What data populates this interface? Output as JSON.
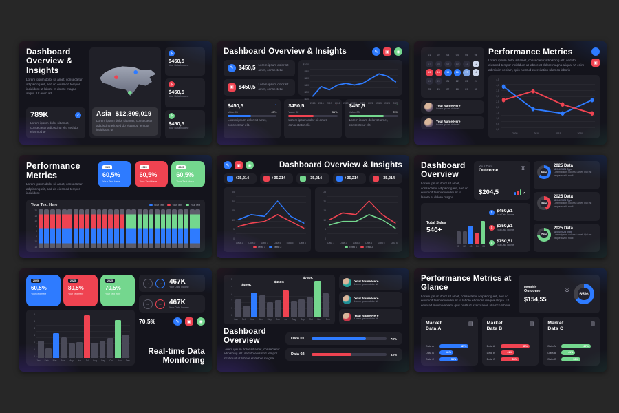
{
  "colors": {
    "blue": "#2e7bff",
    "red": "#ef4351",
    "green": "#74d78e",
    "gray": "#4a4a58"
  },
  "slides": {
    "s1": {
      "title": "Dashboard Overview & Insights",
      "body": "Lorem ipsum dolor sit amet, consectetur adipiscing elit, sed do eiusmod tempor incididunt ut labore et dolore magna aliqua. Ut enim ad",
      "stat_value": "789K",
      "stat_body": "Lorem ipsum dolor sit amet, consectetur adipiscing elit, sed do eiusmod te",
      "region": "Asia",
      "region_value": "$12,809,019",
      "region_body": "Lorem ipsum dolor sit amet, consectetur adipiscing elit sed do eiusmod tempor incididunt ut",
      "incomes": [
        {
          "value": "$450,5",
          "label": "Your Data Income",
          "color": "#2e7bff"
        },
        {
          "value": "$450,5",
          "label": "Your Data Income",
          "color": "#ef4351"
        },
        {
          "value": "$450,5",
          "label": "Your Data Income",
          "color": "#74d78e"
        }
      ]
    },
    "s2": {
      "title": "Dashboard Overview & Insights",
      "cards": [
        {
          "value": "$450,5",
          "body": "Lorem ipsum dolor sit amet, consectetur",
          "color": "#2e7bff"
        },
        {
          "value": "$450,5",
          "body": "Lorem ipsum dolor sit amet, consectetur",
          "color": "#ef4351"
        }
      ],
      "chart": {
        "y": [
          "$10,0",
          "$8,0",
          "$6,0",
          "$4,0",
          "$2,0",
          "$0,0"
        ],
        "x": [
          "2015",
          "2016",
          "2017",
          "2018",
          "2019",
          "2020",
          "2021",
          "2022",
          "2023",
          "2024",
          "2025"
        ],
        "max": 10,
        "sw": 1.4,
        "series": [
          {
            "color": "#2e7bff",
            "values": [
              0.5,
              3.5,
              2.5,
              4,
              4.5,
              4,
              4.5,
              6,
              7.5,
              6.8,
              5
            ]
          }
        ]
      },
      "value_cards": [
        {
          "value": "$450,5",
          "label": "Value 01",
          "pct": 47,
          "pct_label": "47%",
          "color": "#2e7bff",
          "body": "Lorem ipsum dolor sit amet, consectetur elit."
        },
        {
          "value": "$450,5",
          "label": "Value 02",
          "pct": 51,
          "pct_label": "51%",
          "color": "#ef4351",
          "body": "Lorem ipsum dolor sit amet, consectetur elit."
        },
        {
          "value": "$450,5",
          "label": "Value 03",
          "pct": 70,
          "pct_label": "70%",
          "color": "#74d78e",
          "body": "Lorem ipsum dolor sit amet, consectetur elit."
        }
      ]
    },
    "s3": {
      "title": "Performance Metrics",
      "body": "Lorem ipsum dolor sit amet, consectetur adipiscing elit, sed do eiusmod tempor incididunt ut labore et dolore magna aliqua. Ut enim ad minim veniam, quis nostrud exercitation ullamco laboris",
      "calendar": {
        "days": [
          "01",
          "02",
          "03",
          "04",
          "05",
          "06",
          "07",
          "08",
          "09",
          "10",
          "11",
          "12",
          "13",
          "14",
          "15",
          "16",
          "17",
          "18",
          "19",
          "20",
          "21",
          "22",
          "23",
          "24",
          "25",
          "26",
          "27",
          "28",
          "29",
          "30"
        ],
        "states": [
          "plain",
          "plain",
          "plain",
          "plain",
          "plain",
          "plain",
          "dim",
          "dim",
          "dim",
          "dim",
          "dim",
          "light",
          "red",
          "red",
          "blue",
          "blue",
          "lightblue",
          "light",
          "dim",
          "dim",
          "plain",
          "plain",
          "plain",
          "plain",
          "plain",
          "plain",
          "plain",
          "plain",
          "plain",
          "plain"
        ]
      },
      "profiles": [
        {
          "name": "Your Name Here",
          "sub": "Lorem ipsum dolor sit"
        },
        {
          "name": "Your Name Here",
          "sub": "Lorem ipsum dolor sit"
        }
      ],
      "chart": {
        "x": [
          "2005",
          "2010",
          "2015",
          "2020"
        ],
        "y": [
          "4,5",
          "4,0",
          "3,5",
          "3,0",
          "2,5",
          "2,0",
          "1,5",
          "1,0",
          "0,5",
          "0,0"
        ],
        "max": 5,
        "sw": 1.1,
        "dots": true,
        "series": [
          {
            "color": "#2e7bff",
            "values": [
              4.5,
              2,
              1.5,
              3
            ]
          },
          {
            "color": "#ef4351",
            "values": [
              3,
              4,
              2.5,
              1.5
            ]
          }
        ]
      }
    },
    "s4": {
      "title": "Performance Metrics",
      "body": "Lorem ipsum dolor sit amet, consectetur adipiscing elit, sed do eiusmod tempor incididunt",
      "kpis": [
        {
          "badge": "2025",
          "value": "60,5%",
          "label": "Your Text Here",
          "color": "#2e7bff"
        },
        {
          "badge": "2025",
          "value": "60,5%",
          "label": "Your Text Here",
          "color": "#ef4351"
        },
        {
          "badge": "2025",
          "value": "60,5%",
          "label": "Your Text Here",
          "color": "#74d78e"
        }
      ],
      "chart": {
        "title": "Your Text Here",
        "legend": [
          {
            "label": "Your Text",
            "color": "#2e7bff"
          },
          {
            "label": "Your Text",
            "color": "#ef4351"
          },
          {
            "label": "Your Text",
            "color": "#74d78e"
          }
        ],
        "y": [
          "20",
          "15",
          "10",
          "5",
          "0",
          "5",
          "10",
          "15"
        ],
        "stack": {
          "count": 28,
          "red_until": 15,
          "top": "#5c5c6a",
          "mid_red": "#ef4351",
          "mid_green": "#74d78e",
          "low": "#2e7bff"
        }
      }
    },
    "s5": {
      "title": "Dashboard Overview & Insights",
      "badges": [
        {
          "value": "+35,214",
          "color": "#2e7bff"
        },
        {
          "value": "+35,214",
          "color": "#ef4351"
        },
        {
          "value": "+35,214",
          "color": "#74d78e"
        },
        {
          "value": "+35,214",
          "color": "#2e7bff"
        },
        {
          "value": "+35,214",
          "color": "#ef4351"
        }
      ],
      "charts": [
        {
          "x": [
            "Data 1",
            "Data 2",
            "Data 3",
            "Data 4",
            "Data 5",
            "Data 6"
          ],
          "y": [
            "25",
            "20",
            "15",
            "10",
            "5",
            "0"
          ],
          "max": 25,
          "sw": 1,
          "series": [
            {
              "name": "Texto 1",
              "color": "#ef4351",
              "values": [
                6,
                8,
                9,
                13,
                9,
                5
              ]
            },
            {
              "name": "Texto 2",
              "color": "#2e7bff",
              "values": [
                10,
                13,
                12,
                21,
                12,
                8
              ]
            }
          ]
        },
        {
          "x": [
            "Data 1",
            "Data 2",
            "Data 3",
            "Data 4",
            "Data 5",
            "Data 6"
          ],
          "y": [
            "25",
            "20",
            "15",
            "10",
            "5",
            "0"
          ],
          "max": 25,
          "sw": 1,
          "series": [
            {
              "name": "Texto 1",
              "color": "#74d78e",
              "values": [
                7,
                9,
                9,
                13,
                10,
                5
              ]
            },
            {
              "name": "Texto 2",
              "color": "#ef4351",
              "values": [
                10,
                14,
                13,
                21,
                13,
                8
              ]
            }
          ]
        }
      ]
    },
    "s6": {
      "title": "Dashboard Overview",
      "body": "Lorem ipsum dolor sit amet, consectetur adipiscing elit, sed do eiusmod tempor incididunt ut labore et dolore magna",
      "outcome": {
        "label1": "Your Data",
        "label2": "Outcome",
        "value": "$204,5"
      },
      "sales": {
        "label": "Total Sales",
        "value": "540+",
        "x": [
          "01",
          "02",
          "03",
          "04",
          "05"
        ],
        "bars": {
          "values": [
            42,
            42,
            62,
            38,
            78
          ],
          "colors": [
            "#4a4a58",
            "#4a4a58",
            "#2e7bff",
            "#ef4351",
            "#74d78e"
          ]
        },
        "incomes": [
          {
            "value": "$450,51",
            "label": "Your Data Income",
            "color": "#2e7bff"
          },
          {
            "value": "$350,51",
            "label": "Your Data Income",
            "color": "#ef4351"
          },
          {
            "value": "$750,51",
            "label": "Your Data Income",
            "color": "#74d78e"
          }
        ]
      },
      "cards": [
        {
          "pct": 65,
          "pct_label": "65%",
          "color": "#2e7bff",
          "title": "2025 Data",
          "sub": "11/04/2025 Type",
          "body": "Lorem ipsum dolor sit amet. Qui est neque a velit modi"
        },
        {
          "pct": 45,
          "pct_label": "45%",
          "color": "#ef4351",
          "title": "2025 Data",
          "sub": "11/04/2025 Type",
          "body": "Lorem ipsum dolor sit amet. Qui est neque a velit modi"
        },
        {
          "pct": 75,
          "pct_label": "75%",
          "color": "#74d78e",
          "title": "2025 Data",
          "sub": "11/04/2025 Type",
          "body": "Lorem ipsum dolor sit amet. Qui est neque a velit modi"
        }
      ]
    },
    "s7": {
      "kpis": [
        {
          "badge": "2025",
          "value": "60,5%",
          "label": "Your Text Here",
          "color": "#2e7bff"
        },
        {
          "badge": "2025",
          "value": "80,5%",
          "label": "Your Text Here",
          "color": "#ef4351"
        },
        {
          "badge": "2025",
          "value": "70,5%",
          "label": "Your Text Here",
          "color": "#74d78e"
        }
      ],
      "chart": {
        "x": [
          "Jan",
          "Feb",
          "Mar",
          "Apr",
          "May",
          "Jun",
          "Jul",
          "Aug",
          "Sep",
          "Oct",
          "Nov",
          "Dec"
        ],
        "y": [
          "6",
          "5",
          "4",
          "3",
          "2",
          "1",
          "0"
        ],
        "bars": {
          "values": [
            38,
            22,
            55,
            46,
            32,
            36,
            95,
            34,
            38,
            44,
            85,
            52
          ],
          "colors": [
            "#4a4a58",
            "#4a4a58",
            "#2e7bff",
            "#4a4a58",
            "#4a4a58",
            "#4a4a58",
            "#ef4351",
            "#4a4a58",
            "#4a4a58",
            "#4a4a58",
            "#74d78e",
            "#4a4a58"
          ]
        }
      },
      "incomes": [
        {
          "value": "467K",
          "label": "Your Data Income",
          "color": "#2e7bff"
        },
        {
          "value": "467K",
          "label": "Your Data Income",
          "color": "#ef4351"
        }
      ],
      "pct": "70,5%",
      "title": "Real-time Data Monitoring"
    },
    "s8": {
      "chart": {
        "x": [
          "Jan",
          "Feb",
          "Mar",
          "Apr",
          "May",
          "Jun",
          "Jul",
          "Aug",
          "Sep",
          "Oct",
          "Nov",
          "Dec"
        ],
        "y": [
          "5",
          "4",
          "3",
          "2",
          "1",
          "0"
        ],
        "bars": {
          "values": [
            45,
            28,
            62,
            55,
            38,
            42,
            68,
            40,
            45,
            50,
            92,
            60
          ],
          "colors": [
            "#4a4a58",
            "#4a4a58",
            "#2e7bff",
            "#4a4a58",
            "#4a4a58",
            "#4a4a58",
            "#ef4351",
            "#4a4a58",
            "#4a4a58",
            "#4a4a58",
            "#74d78e",
            "#4a4a58"
          ]
        },
        "labels": [
          {
            "text": "$400K"
          },
          {
            "text": "$450K"
          },
          {
            "text": "$750K"
          }
        ]
      },
      "profiles": [
        {
          "name": "Your Name Here",
          "sub": "Lorem ipsum dolor sit"
        },
        {
          "name": "Your Name Here",
          "sub": "Lorem ipsum dolor sit"
        },
        {
          "name": "Your Name Here",
          "sub": "Lorem ipsum dolor sit"
        }
      ],
      "title": "Dashboard Overview",
      "body": "Lorem ipsum dolor sit amet, consectetur adipiscing elit, sed do eiusmod tempor incididunt ut labore et dolore magna",
      "progress": [
        {
          "label": "Data 01",
          "pct": 73,
          "pct_label": "73%",
          "color": "#2e7bff"
        },
        {
          "label": "Data 02",
          "pct": 53,
          "pct_label": "53%",
          "color": "#ef4351"
        }
      ]
    },
    "s9": {
      "title": "Performance Metrics at Glance",
      "body": "Lorem ipsum dolor sit amet, consectetur adipiscing elit, sed do eiusmod tempor incididunt ut labore et dolore magna aliqua. Ut enim ad minim veniam, quis nostrud exercitation ullamco laboris",
      "monthly": {
        "label1": "Monthly",
        "label2": "Outcome",
        "value": "$154,55",
        "pct": 65,
        "pct_label": "65%",
        "color": "#2e7bff"
      },
      "markets": [
        {
          "title": "Market Data A",
          "color": "#2e7bff",
          "rows": [
            {
              "label": "Data A",
              "pct": 87,
              "pct_label": "87%"
            },
            {
              "label": "Data B",
              "pct": 41,
              "pct_label": "41%"
            },
            {
              "label": "Data C",
              "pct": 56,
              "pct_label": "56%"
            }
          ]
        },
        {
          "title": "Market Data B",
          "color": "#ef4351",
          "rows": [
            {
              "label": "Data A",
              "pct": 87,
              "pct_label": "87%"
            },
            {
              "label": "Data B",
              "pct": 41,
              "pct_label": "41%"
            },
            {
              "label": "Data C",
              "pct": 56,
              "pct_label": "56%"
            }
          ]
        },
        {
          "title": "Market Data C",
          "color": "#74d78e",
          "rows": [
            {
              "label": "Data A",
              "pct": 87,
              "pct_label": "87%"
            },
            {
              "label": "Data B",
              "pct": 41,
              "pct_label": "41%"
            },
            {
              "label": "Data C",
              "pct": 56,
              "pct_label": "56%"
            }
          ]
        }
      ]
    }
  }
}
